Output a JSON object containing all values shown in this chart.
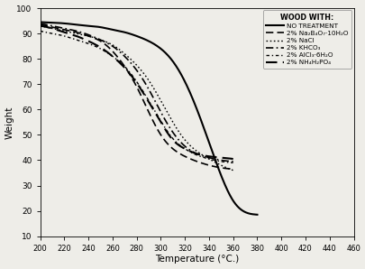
{
  "title": "",
  "xlabel": "Temperature (°C.)",
  "ylabel": "Weight",
  "xlim": [
    200,
    460
  ],
  "ylim": [
    10,
    100
  ],
  "xticks": [
    200,
    220,
    240,
    260,
    280,
    300,
    320,
    340,
    360,
    380,
    400,
    420,
    440,
    460
  ],
  "yticks": [
    10,
    20,
    30,
    40,
    50,
    60,
    70,
    80,
    90,
    100
  ],
  "legend_title": "WOOD WITH:",
  "legend_entries": [
    "NO TREATMENT",
    "2% Na₂B₄O₇·10H₂O",
    "2% NaCl",
    "2% KHCO₃",
    "2% AlCl₃·6H₂O",
    "2% NH₄H₂PO₄"
  ],
  "background_color": "#eeede8",
  "curves": {
    "no_treatment": {
      "x": [
        200,
        210,
        220,
        230,
        240,
        250,
        260,
        270,
        280,
        290,
        300,
        310,
        320,
        330,
        340,
        350,
        360,
        370,
        380
      ],
      "y": [
        94.5,
        94.3,
        94.0,
        93.5,
        93.0,
        92.5,
        91.5,
        90.5,
        89.0,
        87.0,
        84.0,
        79.0,
        71.0,
        60.0,
        47.0,
        34.0,
        24.0,
        19.5,
        18.5
      ]
    },
    "na2b4o7": {
      "x": [
        200,
        210,
        220,
        230,
        240,
        250,
        260,
        270,
        280,
        290,
        300,
        310,
        320,
        330,
        340,
        350,
        360
      ],
      "y": [
        93.5,
        92.5,
        91.5,
        90.5,
        89.0,
        87.0,
        83.0,
        77.0,
        69.0,
        59.0,
        50.0,
        44.5,
        41.5,
        39.5,
        38.0,
        37.0,
        36.5
      ]
    },
    "nacl": {
      "x": [
        200,
        210,
        220,
        230,
        240,
        250,
        260,
        270,
        280,
        290,
        300,
        310,
        320,
        330,
        340,
        350,
        360
      ],
      "y": [
        93.0,
        92.0,
        91.0,
        90.0,
        89.0,
        87.5,
        85.5,
        82.0,
        77.5,
        71.5,
        63.5,
        55.0,
        48.0,
        43.5,
        40.5,
        38.0,
        36.0
      ]
    },
    "khco3": {
      "x": [
        200,
        210,
        220,
        230,
        240,
        250,
        260,
        270,
        280,
        290,
        300,
        310,
        320,
        330,
        340,
        350,
        360
      ],
      "y": [
        94.0,
        93.0,
        92.0,
        91.0,
        89.5,
        87.5,
        85.0,
        81.0,
        75.5,
        68.0,
        59.0,
        51.0,
        45.5,
        42.5,
        41.0,
        40.0,
        39.5
      ]
    },
    "alcl3": {
      "x": [
        200,
        210,
        220,
        230,
        240,
        250,
        260,
        270,
        280,
        290,
        300,
        310,
        320,
        330,
        340,
        350,
        360
      ],
      "y": [
        91.0,
        90.0,
        89.0,
        87.5,
        86.0,
        84.0,
        81.0,
        77.0,
        71.0,
        63.5,
        55.5,
        48.5,
        44.5,
        42.0,
        40.5,
        39.5,
        39.0
      ]
    },
    "nh4h2po4": {
      "x": [
        200,
        210,
        220,
        230,
        240,
        250,
        260,
        270,
        280,
        290,
        300,
        310,
        320,
        330,
        340,
        350,
        360
      ],
      "y": [
        93.0,
        92.0,
        90.5,
        89.0,
        87.0,
        84.5,
        81.0,
        76.5,
        70.5,
        63.0,
        55.0,
        48.0,
        44.5,
        42.5,
        41.5,
        41.0,
        40.5
      ]
    }
  },
  "line_widths": [
    1.5,
    1.2,
    1.0,
    1.2,
    1.0,
    1.5
  ],
  "line_dash_patterns": [
    [],
    [
      5,
      2.5
    ],
    [
      1.2,
      1.8
    ],
    [
      5,
      2,
      1,
      2
    ],
    [
      2.5,
      2,
      1,
      2
    ],
    [
      6,
      3
    ]
  ]
}
